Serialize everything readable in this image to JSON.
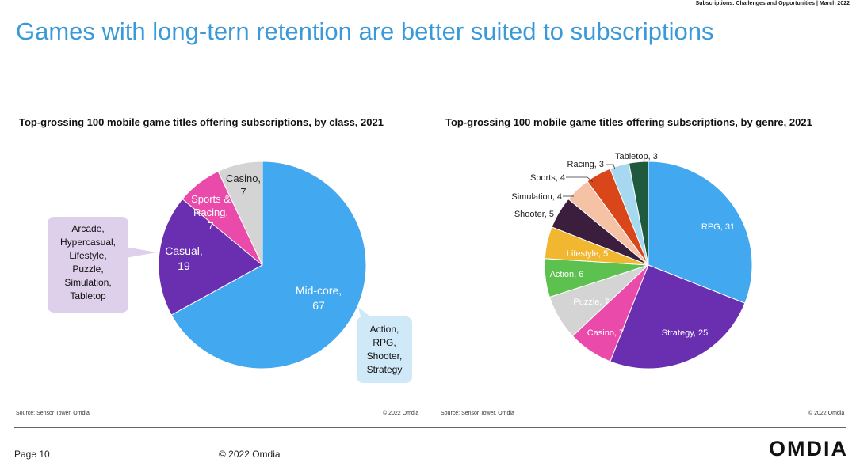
{
  "header": {
    "top_note": "Subscriptions: Challenges and Opportunities | March 2022",
    "title": "Games with long-tern retention are better suited to subscriptions"
  },
  "chart_data": [
    {
      "type": "pie",
      "title": "Top-grossing 100 mobile game titles offering subscriptions, by class, 2021",
      "slices": [
        {
          "label": "Mid-core",
          "value": 67,
          "color": "#42a8ef",
          "text_color": "#ffffff"
        },
        {
          "label": "Casual",
          "value": 19,
          "color": "#6a2fb0",
          "text_color": "#ffffff"
        },
        {
          "label": "Sports & Racing",
          "value": 7,
          "color": "#ea4aa9",
          "text_color": "#ffffff"
        },
        {
          "label": "Casino",
          "value": 7,
          "color": "#d4d4d4",
          "text_color": "#222222"
        }
      ],
      "source": "Source: Sensor Tower, Omdia",
      "copyright": "© 2022 Omdia"
    },
    {
      "type": "pie",
      "title": "Top-grossing 100 mobile game titles offering subscriptions, by genre, 2021",
      "slices": [
        {
          "label": "RPG",
          "value": 31,
          "color": "#42a8ef",
          "text_color": "#ffffff"
        },
        {
          "label": "Strategy",
          "value": 25,
          "color": "#6a2fb0",
          "text_color": "#ffffff"
        },
        {
          "label": "Casino",
          "value": 7,
          "color": "#ea4aa9",
          "text_color": "#ffffff"
        },
        {
          "label": "Puzzle",
          "value": 7,
          "color": "#d4d4d4",
          "text_color": "#ffffff"
        },
        {
          "label": "Action",
          "value": 6,
          "color": "#5cc14e",
          "text_color": "#ffffff"
        },
        {
          "label": "Lifestyle",
          "value": 5,
          "color": "#f1b731",
          "text_color": "#ffffff"
        },
        {
          "label": "Shooter",
          "value": 5,
          "color": "#3b1e3e",
          "text_color": "#222222"
        },
        {
          "label": "Simulation",
          "value": 4,
          "color": "#f6c2a6",
          "text_color": "#222222"
        },
        {
          "label": "Sports",
          "value": 4,
          "color": "#d9461a",
          "text_color": "#222222"
        },
        {
          "label": "Racing",
          "value": 3,
          "color": "#a6d8ef",
          "text_color": "#222222"
        },
        {
          "label": "Tabletop",
          "value": 3,
          "color": "#1f5a3e",
          "text_color": "#222222"
        }
      ],
      "source": "Source: Sensor Tower, Omdia",
      "copyright": "© 2022 Omdia"
    }
  ],
  "callouts": {
    "casual": [
      "Arcade,",
      "Hypercasual,",
      "Lifestyle,",
      "Puzzle,",
      "Simulation,",
      "Tabletop"
    ],
    "midcore": [
      "Action,",
      "RPG,",
      "Shooter,",
      "Strategy"
    ]
  },
  "footer": {
    "page": "Page 10",
    "copyright": "© 2022 Omdia",
    "logo": "OMDIA"
  }
}
